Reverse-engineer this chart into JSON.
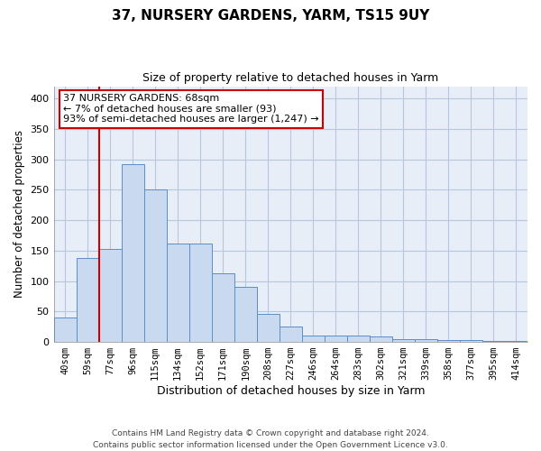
{
  "title": "37, NURSERY GARDENS, YARM, TS15 9UY",
  "subtitle": "Size of property relative to detached houses in Yarm",
  "xlabel": "Distribution of detached houses by size in Yarm",
  "ylabel": "Number of detached properties",
  "bar_labels": [
    "40sqm",
    "59sqm",
    "77sqm",
    "96sqm",
    "115sqm",
    "134sqm",
    "152sqm",
    "171sqm",
    "190sqm",
    "208sqm",
    "227sqm",
    "246sqm",
    "264sqm",
    "283sqm",
    "302sqm",
    "321sqm",
    "339sqm",
    "358sqm",
    "377sqm",
    "395sqm",
    "414sqm"
  ],
  "bar_values": [
    40,
    138,
    153,
    292,
    251,
    161,
    161,
    112,
    91,
    46,
    25,
    10,
    11,
    11,
    9,
    4,
    4,
    3,
    3,
    2,
    2
  ],
  "bar_color": "#c9daf0",
  "bar_edge_color": "#5b8ec4",
  "bar_edge_width": 0.7,
  "grid_color": "#b8c8dc",
  "background_color": "#e8eef8",
  "property_line_color": "#cc0000",
  "annotation_text": "37 NURSERY GARDENS: 68sqm\n← 7% of detached houses are smaller (93)\n93% of semi-detached houses are larger (1,247) →",
  "annotation_box_color": "#ffffff",
  "annotation_box_edge": "#cc0000",
  "ylim": [
    0,
    420
  ],
  "yticks": [
    0,
    50,
    100,
    150,
    200,
    250,
    300,
    350,
    400
  ],
  "footer": "Contains HM Land Registry data © Crown copyright and database right 2024.\nContains public sector information licensed under the Open Government Licence v3.0."
}
